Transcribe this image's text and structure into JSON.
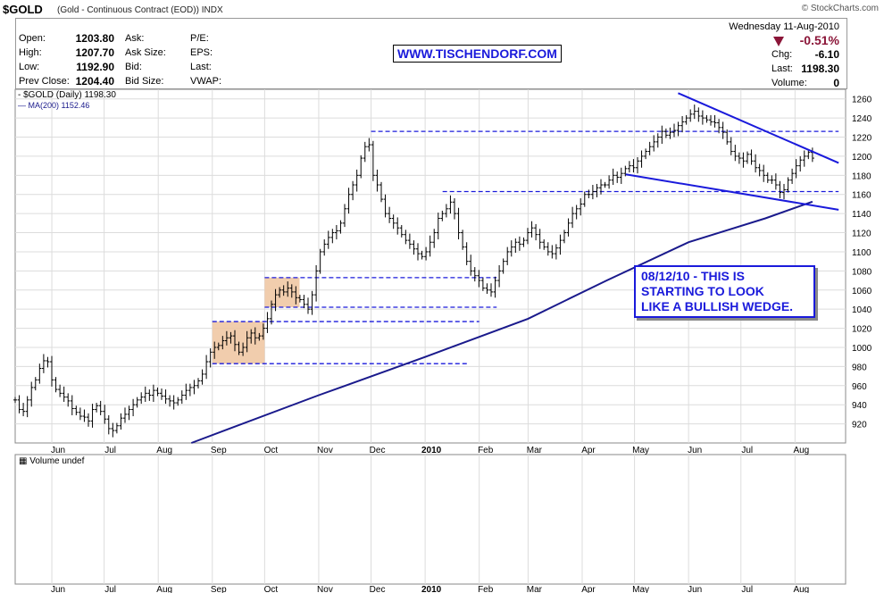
{
  "header": {
    "symbol": "$GOLD",
    "description": "(Gold - Continuous Contract (EOD)) INDX",
    "brand": "© StockCharts.com"
  },
  "quote": {
    "date": "Wednesday 11-Aug-2010",
    "change_pct": "-0.51%",
    "rows_left": [
      {
        "label": "Open:",
        "value": "1203.80"
      },
      {
        "label": "High:",
        "value": "1207.70"
      },
      {
        "label": "Low:",
        "value": "1192.90"
      },
      {
        "label": "Prev Close:",
        "value": "1204.40"
      }
    ],
    "rows_mid": [
      "Ask:",
      "Ask Size:",
      "Bid:",
      "Bid Size:"
    ],
    "rows_mid2": [
      "P/E:",
      "EPS:",
      "Last:",
      "VWAP:"
    ],
    "rows_right": [
      {
        "label": "Chg:",
        "value": "-6.10"
      },
      {
        "label": "Last:",
        "value": "1198.30"
      },
      {
        "label": "Volume:",
        "value": "0"
      }
    ],
    "down_color": "#8b1538"
  },
  "url_label": "WWW.TISCHENDORF.COM",
  "annotation": "08/12/10 - THIS IS\nSTARTING TO LOOK\nLIKE A BULLISH WEDGE.",
  "legend": {
    "price": "$GOLD (Daily) 1198.30",
    "ma": "MA(200) 1152.46"
  },
  "volume_label": "Volume undef",
  "colors": {
    "line_blue": "#1a1adb",
    "ma_blue": "#1a1a8c",
    "box_fill": "#f0c8a4"
  },
  "chart_data": {
    "type": "line",
    "render": "ohlc-bars",
    "ylim": [
      900,
      1270
    ],
    "y_ticks": [
      920,
      940,
      960,
      980,
      1000,
      1020,
      1040,
      1060,
      1080,
      1100,
      1120,
      1140,
      1160,
      1180,
      1200,
      1220,
      1240,
      1260
    ],
    "x_labels": [
      {
        "label": "Jun",
        "date": "2009-06-01"
      },
      {
        "label": "Jul",
        "date": "2009-07-01"
      },
      {
        "label": "Aug",
        "date": "2009-08-01"
      },
      {
        "label": "Sep",
        "date": "2009-09-01"
      },
      {
        "label": "Oct",
        "date": "2009-10-01"
      },
      {
        "label": "Nov",
        "date": "2009-11-01"
      },
      {
        "label": "Dec",
        "date": "2009-12-01"
      },
      {
        "label": "2010",
        "date": "2010-01-01"
      },
      {
        "label": "Feb",
        "date": "2010-02-01"
      },
      {
        "label": "Mar",
        "date": "2010-03-01"
      },
      {
        "label": "Apr",
        "date": "2010-04-01"
      },
      {
        "label": "May",
        "date": "2010-05-01"
      },
      {
        "label": "Jun",
        "date": "2010-06-01"
      },
      {
        "label": "Jul",
        "date": "2010-07-01"
      },
      {
        "label": "Aug",
        "date": "2010-08-01"
      }
    ],
    "series": [
      {
        "name": "$GOLD (Daily)",
        "x_start": "2009-05-11",
        "x_end": "2010-08-11",
        "values": [
          945,
          935,
          933,
          945,
          958,
          966,
          978,
          986,
          985,
          966,
          956,
          952,
          948,
          944,
          936,
          932,
          928,
          927,
          923,
          935,
          939,
          933,
          925,
          915,
          913,
          918,
          926,
          930,
          935,
          940,
          945,
          948,
          952,
          950,
          955,
          952,
          949,
          946,
          944,
          942,
          945,
          950,
          955,
          958,
          960,
          965,
          972,
          985,
          995,
          1000,
          1002,
          1007,
          1010,
          1012,
          1003,
          995,
          1000,
          1010,
          1015,
          1010,
          1012,
          1020,
          1030,
          1045,
          1055,
          1060,
          1058,
          1062,
          1058,
          1052,
          1050,
          1045,
          1040,
          1055,
          1080,
          1100,
          1108,
          1115,
          1120,
          1122,
          1130,
          1145,
          1160,
          1170,
          1180,
          1198,
          1210,
          1212,
          1180,
          1170,
          1155,
          1140,
          1135,
          1130,
          1125,
          1118,
          1112,
          1108,
          1103,
          1098,
          1095,
          1100,
          1110,
          1120,
          1135,
          1140,
          1145,
          1152,
          1140,
          1120,
          1105,
          1090,
          1080,
          1075,
          1070,
          1062,
          1060,
          1058,
          1070,
          1080,
          1090,
          1100,
          1105,
          1110,
          1108,
          1112,
          1120,
          1125,
          1118,
          1110,
          1105,
          1100,
          1098,
          1104,
          1112,
          1120,
          1130,
          1140,
          1145,
          1150,
          1160,
          1160,
          1163,
          1167,
          1170,
          1170,
          1175,
          1180,
          1178,
          1182,
          1187,
          1190,
          1188,
          1195,
          1200,
          1205,
          1210,
          1215,
          1220,
          1226,
          1222,
          1225,
          1227,
          1232,
          1236,
          1240,
          1244,
          1247,
          1242,
          1240,
          1238,
          1236,
          1235,
          1230,
          1225,
          1215,
          1205,
          1200,
          1198,
          1195,
          1202,
          1195,
          1188,
          1185,
          1180,
          1175,
          1175,
          1170,
          1162,
          1165,
          1175,
          1182,
          1190,
          1196,
          1200,
          1204,
          1198
        ]
      },
      {
        "name": "MA(200)",
        "points": [
          [
            "2009-08-20",
            900
          ],
          [
            "2009-11-01",
            950
          ],
          [
            "2010-01-01",
            990
          ],
          [
            "2010-03-01",
            1030
          ],
          [
            "2010-04-15",
            1070
          ],
          [
            "2010-06-01",
            1110
          ],
          [
            "2010-07-15",
            1135
          ],
          [
            "2010-08-11",
            1152.46
          ]
        ]
      }
    ],
    "trendlines": [
      {
        "from": [
          "2010-05-26",
          1266
        ],
        "to": [
          "2010-08-26",
          1193
        ]
      },
      {
        "from": [
          "2010-04-26",
          1181
        ],
        "to": [
          "2010-08-26",
          1144
        ]
      }
    ],
    "horizontal_levels": [
      {
        "y": 1226,
        "from": "2009-12-01",
        "to": "2010-08-26"
      },
      {
        "y": 1163,
        "from": "2010-01-11",
        "to": "2010-08-26"
      },
      {
        "y": 1073,
        "from": "2009-10-01",
        "to": "2010-02-11"
      },
      {
        "y": 1042,
        "from": "2009-10-01",
        "to": "2010-02-11"
      },
      {
        "y": 1027,
        "from": "2009-09-01",
        "to": "2010-02-01"
      },
      {
        "y": 983,
        "from": "2009-09-01",
        "to": "2010-01-26"
      }
    ],
    "consolidation_boxes": [
      {
        "x0": "2009-09-01",
        "x1": "2009-10-01",
        "y0": 983,
        "y1": 1027
      },
      {
        "x0": "2009-10-01",
        "x1": "2009-10-21",
        "y0": 1042,
        "y1": 1073
      }
    ]
  }
}
